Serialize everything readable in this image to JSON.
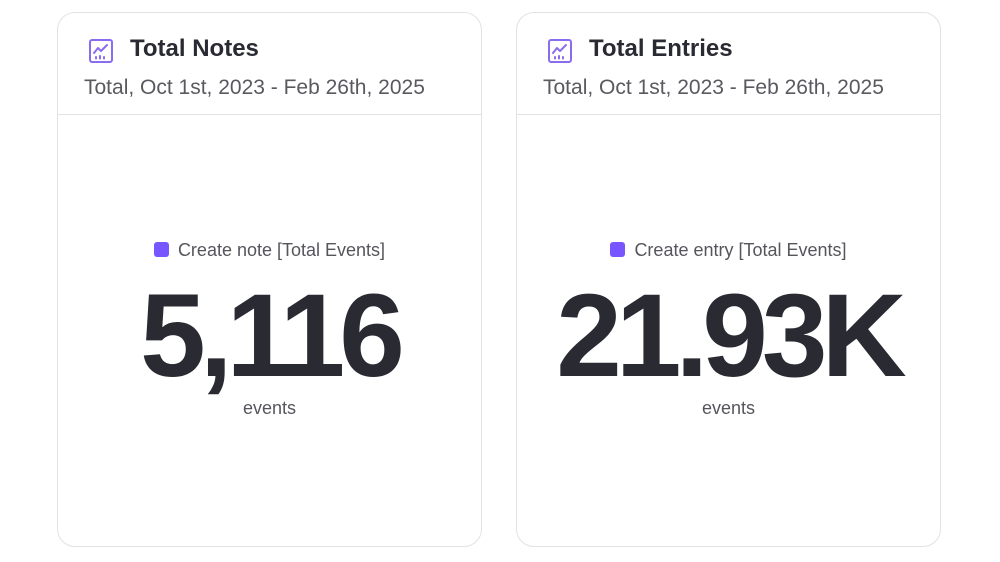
{
  "colors": {
    "accent": "#7856ff",
    "icon": "#8a6cf0",
    "title_text": "#2a2a33",
    "secondary_text": "#595960",
    "border": "#e2e2e6"
  },
  "cards": [
    {
      "icon": "line-chart-icon",
      "title": "Total Notes",
      "subtitle": "Total, Oct 1st, 2023 - Feb 26th, 2025",
      "legend_label": "Create note [Total Events]",
      "value": "5,116",
      "unit": "events"
    },
    {
      "icon": "line-chart-icon",
      "title": "Total Entries",
      "subtitle": "Total, Oct 1st, 2023 - Feb 26th, 2025",
      "legend_label": "Create entry [Total Events]",
      "value": "21.93K",
      "unit": "events"
    }
  ]
}
